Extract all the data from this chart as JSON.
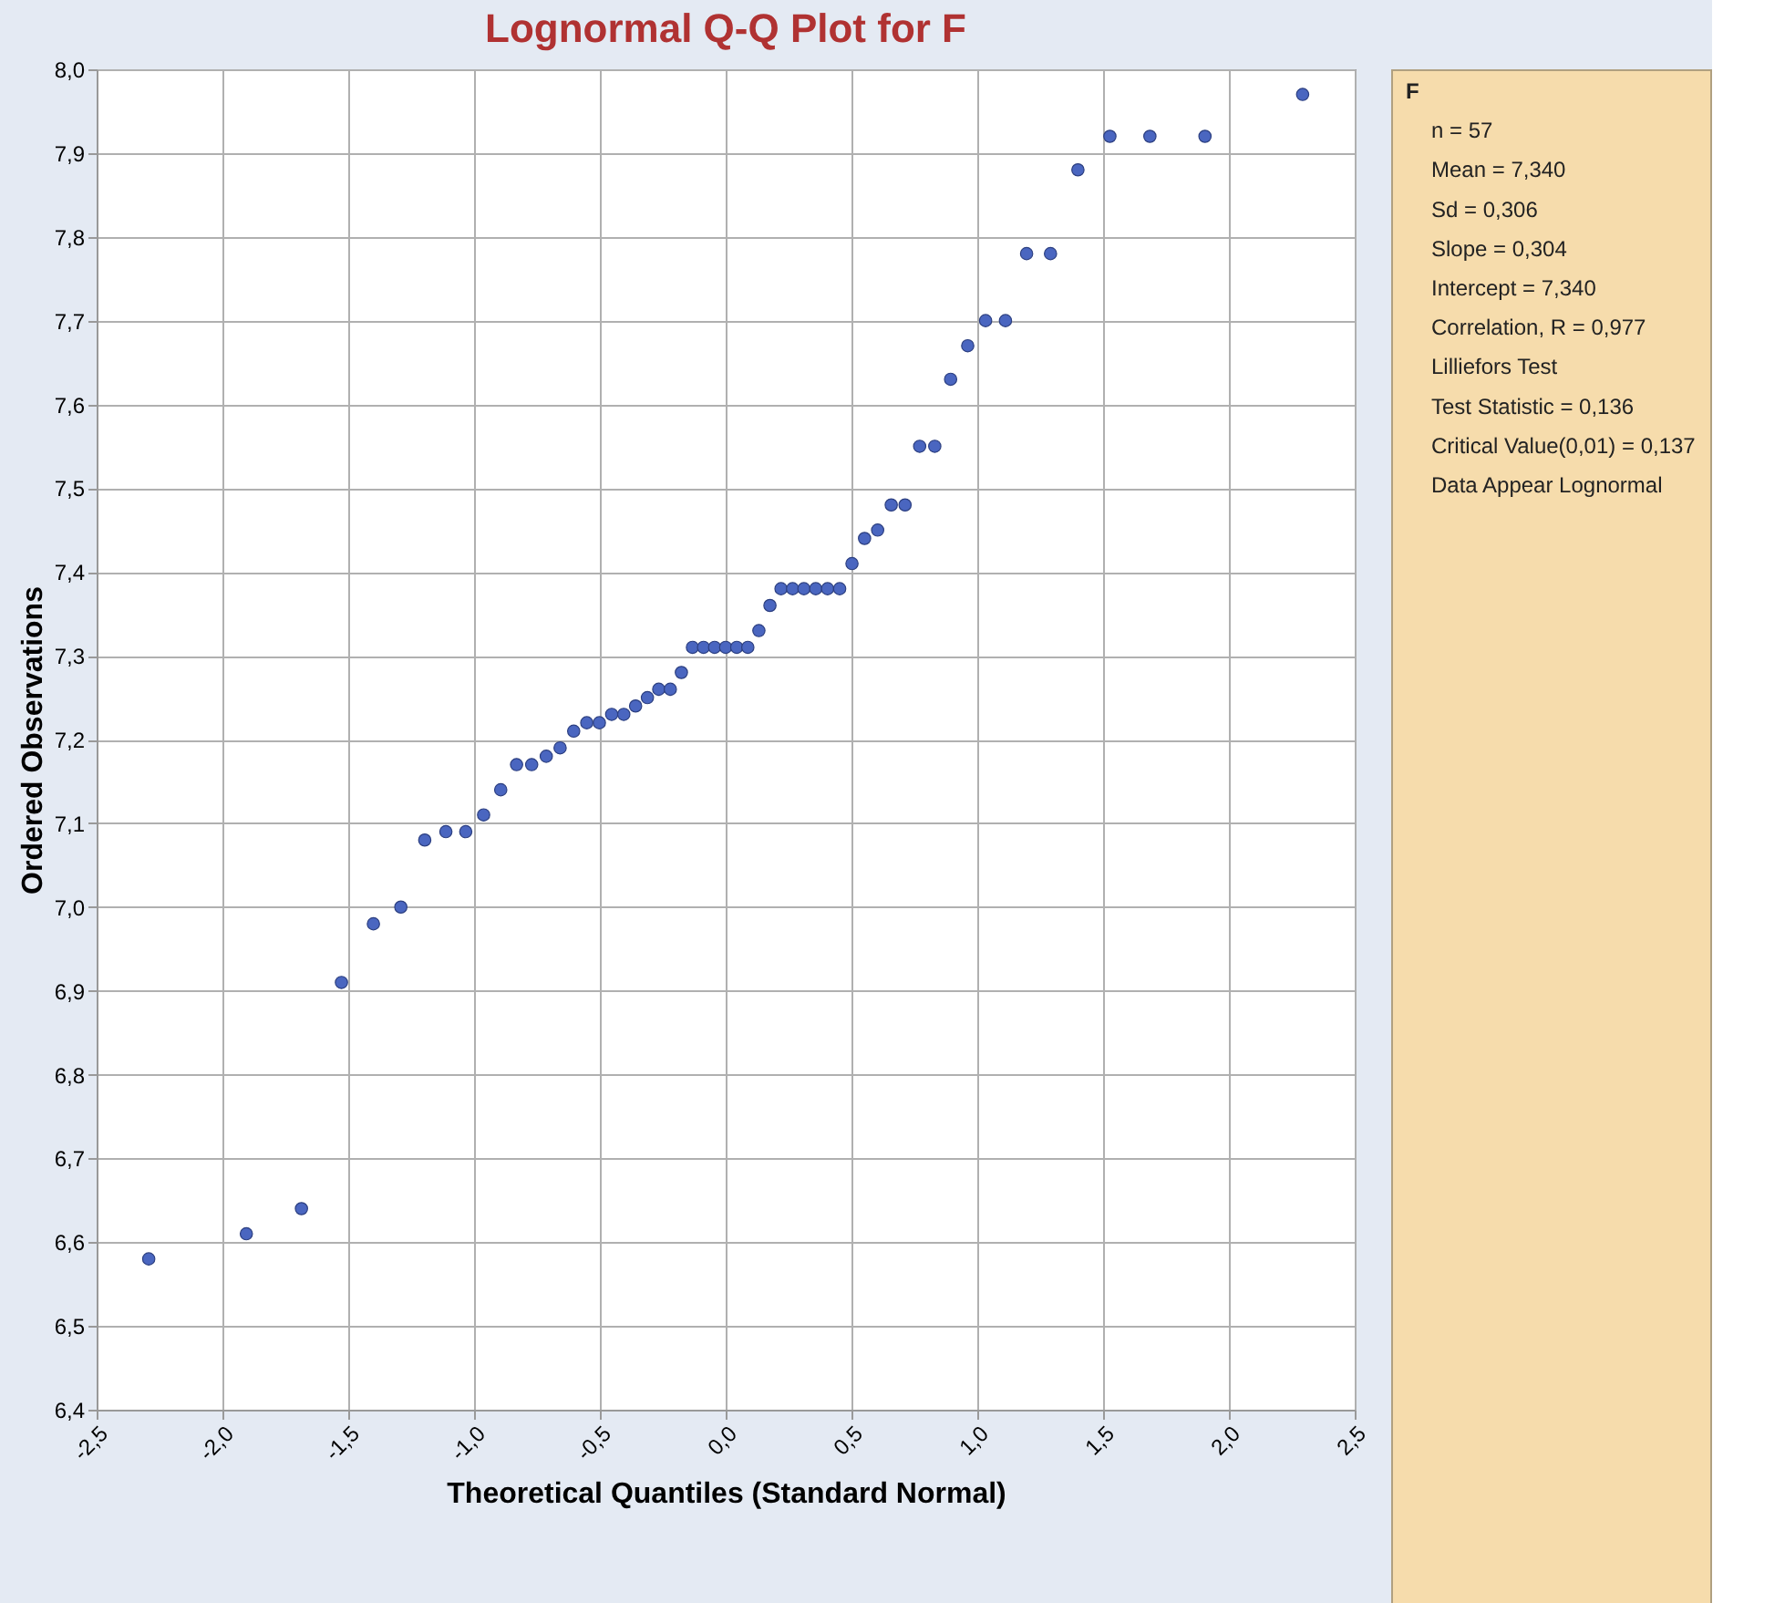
{
  "chart_data": {
    "type": "scatter",
    "title": "Lognormal Q-Q Plot for F",
    "xlabel": "Theoretical Quantiles (Standard Normal)",
    "ylabel": "Ordered Observations",
    "x": [
      -2.293,
      -1.905,
      -1.686,
      -1.527,
      -1.4,
      -1.291,
      -1.196,
      -1.112,
      -1.033,
      -0.962,
      -0.894,
      -0.831,
      -0.771,
      -0.713,
      -0.658,
      -0.604,
      -0.552,
      -0.502,
      -0.453,
      -0.405,
      -0.358,
      -0.311,
      -0.266,
      -0.22,
      -0.176,
      -0.132,
      -0.088,
      -0.044,
      0,
      0.044,
      0.088,
      0.132,
      0.176,
      0.22,
      0.266,
      0.311,
      0.358,
      0.405,
      0.453,
      0.502,
      0.552,
      0.604,
      0.658,
      0.713,
      0.771,
      0.831,
      0.894,
      0.962,
      1.033,
      1.112,
      1.196,
      1.291,
      1.4,
      1.527,
      1.686,
      1.905,
      2.293
    ],
    "series": [
      {
        "color": "#4a66c0",
        "values": [
          6.58,
          6.61,
          6.64,
          6.91,
          6.98,
          7.0,
          7.08,
          7.09,
          7.09,
          7.11,
          7.14,
          7.17,
          7.17,
          7.18,
          7.19,
          7.21,
          7.22,
          7.22,
          7.23,
          7.23,
          7.24,
          7.25,
          7.26,
          7.26,
          7.28,
          7.31,
          7.31,
          7.31,
          7.31,
          7.31,
          7.31,
          7.33,
          7.36,
          7.38,
          7.38,
          7.38,
          7.38,
          7.38,
          7.38,
          7.41,
          7.44,
          7.45,
          7.48,
          7.48,
          7.55,
          7.55,
          7.63,
          7.67,
          7.7,
          7.7,
          7.78,
          7.78,
          7.88,
          7.92,
          7.92,
          7.92,
          7.97
        ]
      }
    ],
    "xlim": [
      -2.5,
      2.5
    ],
    "xticks": [
      {
        "value": -2.5,
        "label": "-2,5"
      },
      {
        "value": -2.0,
        "label": "-2,0"
      },
      {
        "value": -1.5,
        "label": "-1,5"
      },
      {
        "value": -1.0,
        "label": "-1,0"
      },
      {
        "value": -0.5,
        "label": "-0,5"
      },
      {
        "value": 0,
        "label": "0,0"
      },
      {
        "value": 0.5,
        "label": "0,5"
      },
      {
        "value": 1.0,
        "label": "1,0"
      },
      {
        "value": 1.5,
        "label": "1,5"
      },
      {
        "value": 2.0,
        "label": "2,0"
      },
      {
        "value": 2.5,
        "label": "2,5"
      }
    ],
    "ylim": [
      6.4,
      8.0
    ],
    "yticks": [
      {
        "value": 6.4,
        "label": "6,4"
      },
      {
        "value": 6.5,
        "label": "6,5"
      },
      {
        "value": 6.6,
        "label": "6,6"
      },
      {
        "value": 6.7,
        "label": "6,7"
      },
      {
        "value": 6.8,
        "label": "6,8"
      },
      {
        "value": 6.9,
        "label": "6,9"
      },
      {
        "value": 7.0,
        "label": "7,0"
      },
      {
        "value": 7.1,
        "label": "7,1"
      },
      {
        "value": 7.2,
        "label": "7,2"
      },
      {
        "value": 7.3,
        "label": "7,3"
      },
      {
        "value": 7.4,
        "label": "7,4"
      },
      {
        "value": 7.5,
        "label": "7,5"
      },
      {
        "value": 7.6,
        "label": "7,6"
      },
      {
        "value": 7.7,
        "label": "7,7"
      },
      {
        "value": 7.8,
        "label": "7,8"
      },
      {
        "value": 7.9,
        "label": "7,9"
      },
      {
        "value": 8.0,
        "label": "8,0"
      }
    ],
    "grid": true,
    "marker": "circle",
    "annotations": [
      "F",
      "n = 57",
      "Mean = 7,340",
      "Sd = 0,306",
      "Slope = 0,304",
      "Intercept = 7,340",
      "Correlation, R = 0,977",
      "Lilliefors Test",
      "Test Statistic = 0,136",
      "Critical Value(0,01) = 0,137",
      "Data Appear Lognormal"
    ]
  }
}
